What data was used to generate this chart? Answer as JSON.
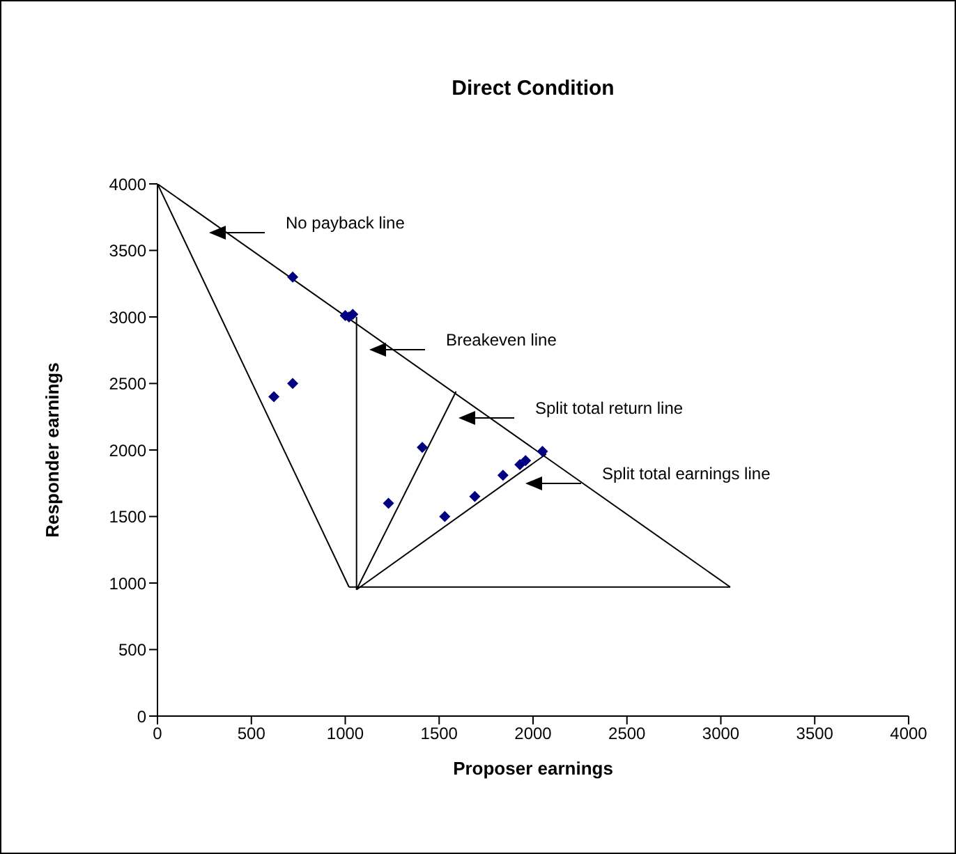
{
  "chart_data": {
    "type": "scatter",
    "title": "Direct Condition",
    "xlabel": "Proposer earnings",
    "ylabel": "Responder earnings",
    "xlim": [
      0,
      4000
    ],
    "ylim": [
      0,
      4000
    ],
    "xticks": [
      0,
      500,
      1000,
      1500,
      2000,
      2500,
      3000,
      3500,
      4000
    ],
    "yticks": [
      0,
      500,
      1000,
      1500,
      2000,
      2500,
      3000,
      3500,
      4000
    ],
    "series": [
      {
        "type": "line",
        "color": "#000000",
        "x": [
          0,
          3050
        ],
        "values": [
          4000,
          970
        ]
      },
      {
        "type": "line",
        "color": "#000000",
        "x": [
          0,
          1020
        ],
        "values": [
          4000,
          970
        ]
      },
      {
        "type": "line",
        "color": "#000000",
        "x": [
          1020,
          3050
        ],
        "values": [
          970,
          970
        ]
      },
      {
        "type": "line",
        "color": "#000000",
        "x": [
          1060,
          1060
        ],
        "values": [
          950,
          3000
        ]
      },
      {
        "type": "line",
        "color": "#000000",
        "x": [
          1060,
          1590
        ],
        "values": [
          950,
          2440
        ]
      },
      {
        "type": "line",
        "color": "#000000",
        "x": [
          1060,
          2070
        ],
        "values": [
          950,
          1970
        ]
      },
      {
        "color": "#000080",
        "marker": "diamond",
        "x": [
          620,
          720,
          720,
          1000,
          1020,
          1040,
          1230,
          1410,
          1530,
          1690,
          1840,
          1930,
          1960,
          2050
        ],
        "values": [
          2400,
          2500,
          3300,
          3010,
          3000,
          3020,
          1600,
          2020,
          1500,
          1650,
          1810,
          1890,
          1920,
          1990
        ]
      }
    ],
    "annotations": [
      "No payback line",
      "Breakeven line",
      "Split total return line",
      "Split total earnings line"
    ]
  }
}
